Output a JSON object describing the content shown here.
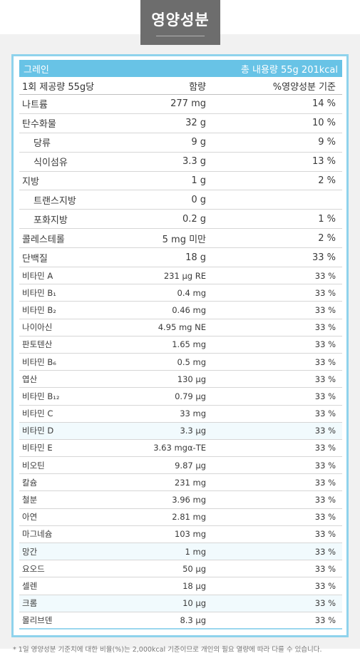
{
  "title": "영양성분",
  "header": {
    "product": "그레인",
    "total": "총 내용량 55g 201kcal"
  },
  "columns": {
    "serving": "1회 제공량 55g당",
    "amount": "함량",
    "daily": "%영양성분 기준"
  },
  "main_rows": [
    {
      "name": "나트륨",
      "amount": "277 mg",
      "daily": "14 %",
      "indent": false
    },
    {
      "name": "탄수화물",
      "amount": "32 g",
      "daily": "10 %",
      "indent": false
    },
    {
      "name": "당류",
      "amount": "9 g",
      "daily": "9 %",
      "indent": true
    },
    {
      "name": "식이섬유",
      "amount": "3.3 g",
      "daily": "13 %",
      "indent": true
    },
    {
      "name": "지방",
      "amount": "1 g",
      "daily": "2 %",
      "indent": false
    },
    {
      "name": "트랜스지방",
      "amount": "0 g",
      "daily": "",
      "indent": true
    },
    {
      "name": "포화지방",
      "amount": "0.2 g",
      "daily": "1 %",
      "indent": true
    },
    {
      "name": "콜레스테롤",
      "amount": "5 mg 미만",
      "daily": "2 %",
      "indent": false
    },
    {
      "name": "단백질",
      "amount": "18 g",
      "daily": "33 %",
      "indent": false
    }
  ],
  "vitamin_rows": [
    {
      "name": "비타민 A",
      "amount": "231 µg RE",
      "daily": "33 %"
    },
    {
      "name": "비타민 B₁",
      "amount": "0.4 mg",
      "daily": "33 %"
    },
    {
      "name": "비타민 B₂",
      "amount": "0.46 mg",
      "daily": "33 %"
    },
    {
      "name": "나이아신",
      "amount": "4.95 mg NE",
      "daily": "33 %"
    },
    {
      "name": "판토텐산",
      "amount": "1.65 mg",
      "daily": "33 %"
    },
    {
      "name": "비타민 B₆",
      "amount": "0.5 mg",
      "daily": "33 %"
    },
    {
      "name": "엽산",
      "amount": "130 µg",
      "daily": "33 %"
    },
    {
      "name": "비타민 B₁₂",
      "amount": "0.79 µg",
      "daily": "33 %"
    },
    {
      "name": "비타민 C",
      "amount": "33 mg",
      "daily": "33 %"
    },
    {
      "name": "비타민 D",
      "amount": "3.3 µg",
      "daily": "33 %"
    },
    {
      "name": "비타민 E",
      "amount": "3.63 mgα-TE",
      "daily": "33 %"
    },
    {
      "name": "비오틴",
      "amount": "9.87 µg",
      "daily": "33 %"
    },
    {
      "name": "칼슘",
      "amount": "231 mg",
      "daily": "33 %"
    },
    {
      "name": "철분",
      "amount": "3.96 mg",
      "daily": "33 %"
    },
    {
      "name": "아연",
      "amount": "2.81 mg",
      "daily": "33 %"
    },
    {
      "name": "마그네슘",
      "amount": "103 mg",
      "daily": "33 %"
    },
    {
      "name": "망간",
      "amount": "1 mg",
      "daily": "33 %"
    },
    {
      "name": "요오드",
      "amount": "50 µg",
      "daily": "33 %"
    },
    {
      "name": "셀렌",
      "amount": "18 µg",
      "daily": "33 %"
    },
    {
      "name": "크롬",
      "amount": "10 µg",
      "daily": "33 %"
    },
    {
      "name": "몰리브덴",
      "amount": "8.3 µg",
      "daily": "33 %"
    }
  ],
  "footnote": "* 1일 영양성분 기준치에 대한 비율(%)는 2,000kcal 기준이므로 개인의 필요 열량에 따라 다를 수 있습니다.",
  "colors": {
    "accent": "#68c3e6",
    "border": "#8fd3ec",
    "title_bg": "#6d6d6d",
    "band": "#f1f1f1"
  }
}
